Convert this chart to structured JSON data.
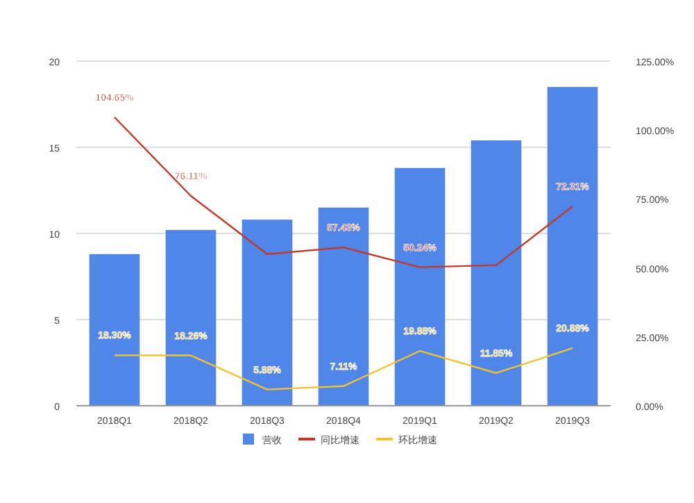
{
  "chart_data": {
    "type": "bar",
    "categories": [
      "2018Q1",
      "2018Q2",
      "2018Q3",
      "2018Q4",
      "2019Q1",
      "2019Q2",
      "2019Q3"
    ],
    "series": [
      {
        "name": "营收",
        "color": "#4f86e8",
        "values": [
          8.8,
          10.2,
          10.8,
          11.5,
          13.8,
          15.4,
          18.5
        ]
      },
      {
        "name": "同比增速",
        "type": "line",
        "axis": "y2",
        "color": "#c0392b",
        "values": [
          104.65,
          76.11,
          55,
          57.43,
          50.24,
          51,
          72.31
        ],
        "value_labels": [
          "104.65%",
          "76.11%",
          null,
          "57.43%",
          "50.24%",
          null,
          "72.31%"
        ]
      },
      {
        "name": "环比增速",
        "type": "line",
        "axis": "y2",
        "color": "#f1c232",
        "values": [
          18.3,
          18.26,
          5.88,
          7.11,
          19.88,
          11.85,
          20.88
        ],
        "value_labels": [
          "18.30%",
          "18.26%",
          "5.88%",
          "7.11%",
          "19.88%",
          "11.85%",
          "20.88%"
        ]
      }
    ],
    "ylim": [
      0,
      20
    ],
    "yticks": [
      0,
      5,
      10,
      15,
      20
    ],
    "y2lim": [
      0,
      125
    ],
    "y2ticks": [
      {
        "value": 0,
        "label": "0.00%"
      },
      {
        "value": 25,
        "label": "25.00%"
      },
      {
        "value": 50,
        "label": "50.00%"
      },
      {
        "value": 75,
        "label": "75.00%"
      },
      {
        "value": 100,
        "label": "100.00%"
      },
      {
        "value": 125,
        "label": "125.00%"
      }
    ],
    "grid": "y",
    "legend": "bottom",
    "marker": "none"
  }
}
